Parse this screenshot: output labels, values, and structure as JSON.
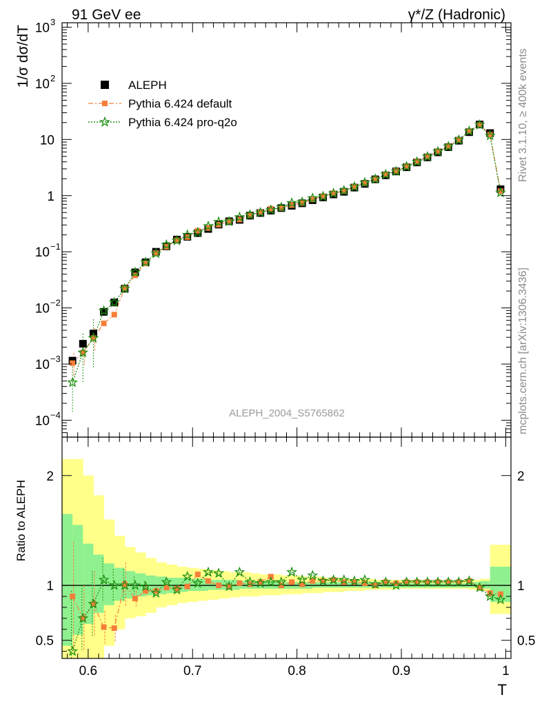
{
  "header": {
    "left_label": "91 GeV ee",
    "right_label": "γ*/Z (Hadronic)"
  },
  "side_text": {
    "rivet": "Rivet 3.1.10, ≥ 400k events",
    "mcplots": "mcplots.cern.ch [arXiv:1306.3436]"
  },
  "watermark": "ALEPH_2004_S5765862",
  "colors": {
    "data": "#000000",
    "default": "#f57f3a",
    "proq2o": "#1f8f12",
    "band_outer": "#ffff8a",
    "band_inner": "#8ff08f"
  },
  "chart_data": [
    {
      "type": "scatter",
      "scale": "log",
      "ylabel": "1/σ  dσ/dT",
      "xlim": [
        0.575,
        1.005
      ],
      "ylim": [
        5e-05,
        1200
      ],
      "y_ticks": [
        {
          "v": 0.0001,
          "base": "10",
          "exp": "−4"
        },
        {
          "v": 0.001,
          "base": "10",
          "exp": "−3"
        },
        {
          "v": 0.01,
          "base": "10",
          "exp": "−2"
        },
        {
          "v": 0.1,
          "base": "10",
          "exp": "−1"
        },
        {
          "v": 1,
          "base": "1",
          "exp": ""
        },
        {
          "v": 10,
          "base": "10",
          "exp": ""
        },
        {
          "v": 100,
          "base": "10",
          "exp": "2"
        },
        {
          "v": 1000,
          "base": "10",
          "exp": "3"
        }
      ],
      "x": [
        0.585,
        0.595,
        0.605,
        0.615,
        0.625,
        0.635,
        0.645,
        0.655,
        0.665,
        0.675,
        0.685,
        0.695,
        0.705,
        0.715,
        0.725,
        0.735,
        0.745,
        0.755,
        0.765,
        0.775,
        0.785,
        0.795,
        0.805,
        0.815,
        0.825,
        0.835,
        0.845,
        0.855,
        0.865,
        0.875,
        0.885,
        0.895,
        0.905,
        0.915,
        0.925,
        0.935,
        0.945,
        0.955,
        0.965,
        0.975,
        0.985,
        0.995
      ],
      "series": [
        {
          "name": "ALEPH",
          "marker": "square",
          "values": [
            0.00115,
            0.0023,
            0.0035,
            0.0085,
            0.0125,
            0.022,
            0.043,
            0.065,
            0.1,
            0.125,
            0.165,
            0.185,
            0.215,
            0.255,
            0.305,
            0.35,
            0.37,
            0.44,
            0.49,
            0.54,
            0.6,
            0.66,
            0.73,
            0.83,
            0.93,
            1.05,
            1.17,
            1.39,
            1.62,
            1.95,
            2.3,
            2.7,
            3.2,
            3.9,
            4.8,
            5.9,
            7.3,
            9.5,
            13.5,
            18.5,
            13.0,
            1.3
          ]
        },
        {
          "name": "Pythia 6.424 default",
          "marker": "filled-square",
          "values": [
            0.00104,
            0.0016,
            0.0029,
            0.0053,
            0.0076,
            0.0223,
            0.038,
            0.062,
            0.095,
            0.123,
            0.16,
            0.183,
            0.237,
            0.265,
            0.305,
            0.345,
            0.375,
            0.445,
            0.505,
            0.585,
            0.6,
            0.68,
            0.74,
            0.86,
            0.97,
            1.1,
            1.2,
            1.43,
            1.66,
            1.96,
            2.38,
            2.75,
            3.3,
            4.03,
            4.95,
            6.1,
            7.5,
            9.8,
            14.0,
            18.2,
            12.2,
            1.2
          ]
        },
        {
          "name": "Pythia 6.424 pro-q2o",
          "marker": "open-star",
          "values": [
            0.00047,
            0.0016,
            0.0029,
            0.0089,
            0.0125,
            0.022,
            0.043,
            0.065,
            0.093,
            0.133,
            0.158,
            0.2,
            0.22,
            0.285,
            0.34,
            0.345,
            0.413,
            0.455,
            0.5,
            0.555,
            0.62,
            0.74,
            0.77,
            0.9,
            0.97,
            1.1,
            1.23,
            1.44,
            1.7,
            1.97,
            2.38,
            2.7,
            3.3,
            4.0,
            4.95,
            6.1,
            7.5,
            9.8,
            14.1,
            18.2,
            11.7,
            1.13
          ]
        }
      ]
    },
    {
      "type": "scatter",
      "ylabel": "Ratio to ALEPH",
      "xlabel": "T",
      "xlim": [
        0.575,
        1.005
      ],
      "ylim": [
        0.335,
        2.35
      ],
      "x_ticks": [
        "0.6",
        "0.7",
        "0.8",
        "0.9",
        "1"
      ],
      "x_tick_values": [
        0.6,
        0.7,
        0.8,
        0.9,
        1.0
      ],
      "y_ticks": [
        "0.5",
        "1",
        "2"
      ],
      "y_tick_values": [
        0.5,
        1,
        2
      ],
      "x": [
        0.585,
        0.595,
        0.605,
        0.615,
        0.625,
        0.635,
        0.645,
        0.655,
        0.665,
        0.675,
        0.685,
        0.695,
        0.705,
        0.715,
        0.725,
        0.735,
        0.745,
        0.755,
        0.765,
        0.775,
        0.785,
        0.795,
        0.805,
        0.815,
        0.825,
        0.835,
        0.845,
        0.855,
        0.865,
        0.875,
        0.885,
        0.895,
        0.905,
        0.915,
        0.925,
        0.935,
        0.945,
        0.955,
        0.965,
        0.975,
        0.985,
        0.995
      ],
      "band_outer": {
        "lo": [
          0.3,
          0.3,
          0.3,
          0.45,
          0.6,
          0.7,
          0.72,
          0.75,
          0.8,
          0.82,
          0.84,
          0.85,
          0.86,
          0.87,
          0.88,
          0.89,
          0.9,
          0.9,
          0.91,
          0.91,
          0.92,
          0.92,
          0.93,
          0.93,
          0.94,
          0.94,
          0.95,
          0.95,
          0.96,
          0.96,
          0.96,
          0.97,
          0.97,
          0.97,
          0.97,
          0.97,
          0.97,
          0.97,
          0.97,
          0.96,
          0.95,
          0.74
        ],
        "hi": [
          2.15,
          2.0,
          1.82,
          1.6,
          1.45,
          1.35,
          1.3,
          1.25,
          1.21,
          1.19,
          1.17,
          1.16,
          1.15,
          1.14,
          1.13,
          1.12,
          1.12,
          1.11,
          1.1,
          1.1,
          1.09,
          1.09,
          1.08,
          1.08,
          1.07,
          1.07,
          1.06,
          1.06,
          1.06,
          1.05,
          1.05,
          1.05,
          1.05,
          1.05,
          1.04,
          1.04,
          1.04,
          1.04,
          1.05,
          1.05,
          1.06,
          1.37
        ]
      },
      "band_inner": {
        "lo": [
          0.45,
          0.55,
          0.65,
          0.75,
          0.82,
          0.86,
          0.88,
          0.9,
          0.91,
          0.92,
          0.93,
          0.94,
          0.95,
          0.95,
          0.96,
          0.96,
          0.96,
          0.97,
          0.97,
          0.97,
          0.97,
          0.97,
          0.97,
          0.97,
          0.98,
          0.98,
          0.98,
          0.98,
          0.98,
          0.98,
          0.98,
          0.98,
          0.98,
          0.98,
          0.98,
          0.98,
          0.98,
          0.98,
          0.98,
          0.98,
          0.97,
          0.85
        ],
        "hi": [
          1.65,
          1.55,
          1.38,
          1.28,
          1.2,
          1.16,
          1.13,
          1.11,
          1.09,
          1.08,
          1.07,
          1.07,
          1.06,
          1.06,
          1.05,
          1.05,
          1.05,
          1.04,
          1.04,
          1.04,
          1.04,
          1.03,
          1.03,
          1.03,
          1.03,
          1.03,
          1.03,
          1.03,
          1.03,
          1.03,
          1.03,
          1.03,
          1.03,
          1.02,
          1.02,
          1.02,
          1.02,
          1.02,
          1.02,
          1.03,
          1.04,
          1.17
        ]
      },
      "series": [
        {
          "name": "Pythia 6.424 default",
          "marker": "filled-square",
          "values": [
            0.9,
            0.7,
            0.83,
            0.62,
            0.61,
            1.01,
            0.88,
            0.95,
            0.95,
            0.98,
            0.97,
            0.99,
            1.1,
            1.04,
            1.0,
            0.99,
            1.02,
            1.01,
            1.03,
            1.08,
            1.0,
            1.03,
            1.01,
            1.04,
            1.04,
            1.05,
            1.03,
            1.03,
            1.02,
            1.0,
            1.03,
            1.02,
            1.03,
            1.03,
            1.03,
            1.03,
            1.03,
            1.03,
            1.04,
            0.98,
            0.93,
            0.92
          ],
          "err": [
            0.5,
            0.3,
            0.3,
            0.15,
            0.12,
            0.2,
            0.07,
            0.05,
            0.04,
            0.03,
            0.03,
            0.02,
            0.02,
            0.02,
            0.02,
            0.02,
            0.02,
            0.01,
            0.01,
            0.01,
            0.01,
            0.01,
            0.01,
            0.01,
            0.01,
            0.01,
            0.01,
            0.01,
            0.01,
            0.01,
            0.01,
            0.01,
            0.01,
            0.01,
            0.01,
            0.01,
            0.01,
            0.01,
            0.01,
            0.01,
            0.01,
            0.01
          ]
        },
        {
          "name": "Pythia 6.424 pro-q2o",
          "marker": "open-star",
          "values": [
            0.4,
            0.7,
            0.83,
            1.05,
            1.0,
            1.0,
            1.0,
            0.99,
            0.93,
            1.03,
            0.96,
            1.08,
            1.02,
            1.12,
            1.11,
            0.99,
            1.12,
            1.03,
            1.02,
            1.03,
            1.03,
            1.12,
            1.05,
            1.09,
            1.04,
            1.05,
            1.05,
            1.04,
            1.05,
            1.01,
            1.03,
            1.0,
            1.03,
            1.03,
            1.03,
            1.03,
            1.03,
            1.03,
            1.04,
            0.98,
            0.9,
            0.87
          ],
          "err": [
            0.55,
            0.3,
            0.3,
            0.2,
            0.15,
            0.15,
            0.08,
            0.05,
            0.04,
            0.03,
            0.03,
            0.02,
            0.02,
            0.02,
            0.02,
            0.02,
            0.02,
            0.01,
            0.01,
            0.01,
            0.01,
            0.01,
            0.01,
            0.01,
            0.01,
            0.01,
            0.01,
            0.01,
            0.01,
            0.01,
            0.01,
            0.01,
            0.01,
            0.01,
            0.01,
            0.01,
            0.01,
            0.01,
            0.01,
            0.01,
            0.01,
            0.01
          ]
        }
      ]
    }
  ]
}
